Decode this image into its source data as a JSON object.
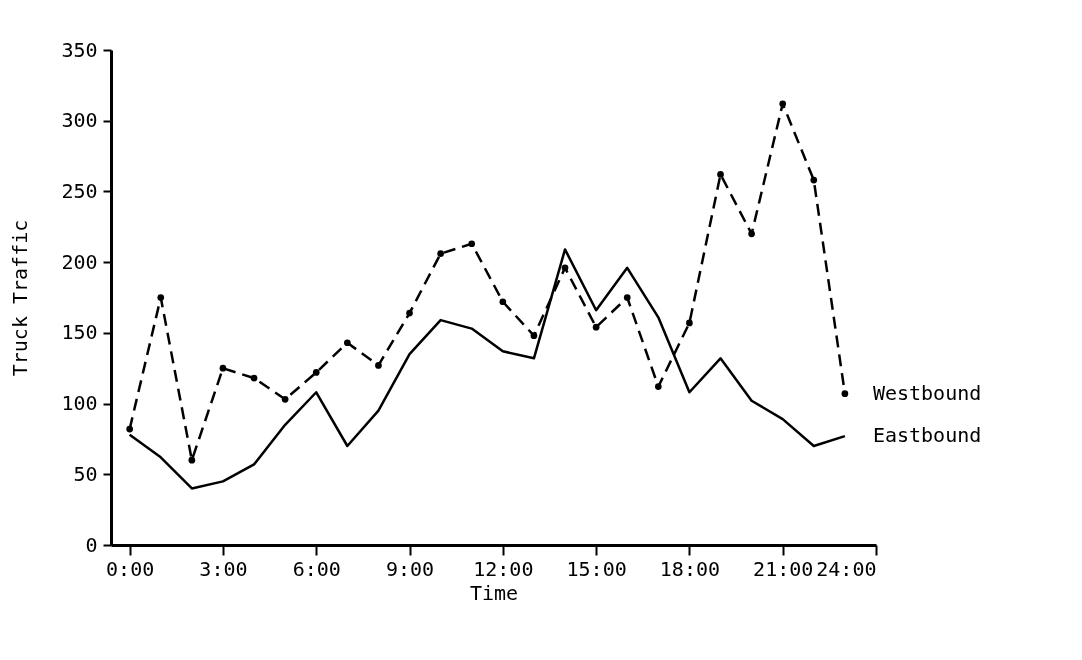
{
  "chart_data": {
    "type": "line",
    "xlabel": "Time",
    "ylabel": "Truck Traffic",
    "x": [
      0,
      1,
      2,
      3,
      4,
      5,
      6,
      7,
      8,
      9,
      10,
      11,
      12,
      13,
      14,
      15,
      16,
      17,
      18,
      19,
      20,
      21,
      22,
      23
    ],
    "series": [
      {
        "name": "Westbound",
        "color": "#000000",
        "line_style": "dashed",
        "marker": "circle",
        "values": [
          82,
          175,
          60,
          125,
          118,
          103,
          122,
          143,
          127,
          164,
          206,
          213,
          172,
          148,
          196,
          154,
          175,
          112,
          157,
          262,
          220,
          312,
          258,
          107
        ]
      },
      {
        "name": "Eastbound",
        "color": "#000000",
        "line_style": "solid",
        "marker": "none",
        "values": [
          78,
          62,
          40,
          45,
          57,
          85,
          108,
          70,
          95,
          135,
          159,
          153,
          137,
          132,
          209,
          166,
          196,
          161,
          108,
          132,
          102,
          89,
          70,
          77
        ]
      }
    ],
    "xlim": [
      -0.6,
      24
    ],
    "xticks": [
      {
        "value": 0,
        "label": "0:00"
      },
      {
        "value": 3,
        "label": "3:00"
      },
      {
        "value": 6,
        "label": "6:00"
      },
      {
        "value": 9,
        "label": "9:00"
      },
      {
        "value": 12,
        "label": "12:00"
      },
      {
        "value": 15,
        "label": "15:00"
      },
      {
        "value": 18,
        "label": "18:00"
      },
      {
        "value": 21,
        "label": "21:00"
      },
      {
        "value": 24,
        "label": "24:00"
      }
    ],
    "ylim": [
      0,
      350
    ],
    "yticks": [
      0,
      50,
      100,
      150,
      200,
      250,
      300,
      350
    ],
    "grid": false,
    "legend": false
  }
}
